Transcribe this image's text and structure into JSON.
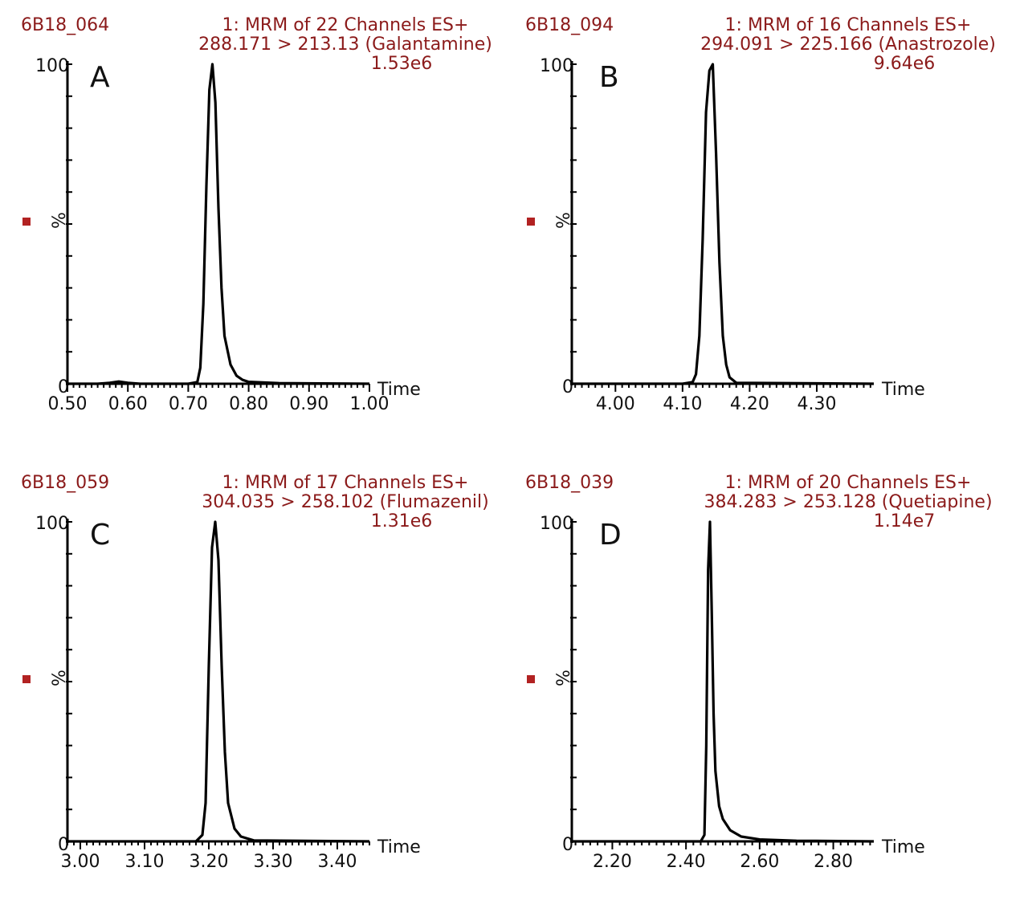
{
  "colors": {
    "header_text": "#8b1a1a",
    "marker": "#b22222",
    "trace": "#000000"
  },
  "chart_data": [
    {
      "type": "line",
      "panel_letter": "A",
      "sample_id": "6B18_064",
      "function_title": "1: MRM of 22 Channels ES+",
      "transition": "288.171 > 213.13 (Galantamine)",
      "intensity_scale": "1.53e6",
      "ylabel": "%",
      "xlabel": "Time",
      "y_tick_labels": [
        "100",
        "0"
      ],
      "ylim": [
        0,
        100
      ],
      "xlim": [
        0.5,
        1.0
      ],
      "x_ticks": [
        "0.50",
        "0.60",
        "0.70",
        "0.80",
        "0.90",
        "1.00"
      ],
      "series": [
        {
          "x": [
            0.5,
            0.55,
            0.57,
            0.585,
            0.6,
            0.62,
            0.7,
            0.715,
            0.72,
            0.725,
            0.73,
            0.735,
            0.74,
            0.745,
            0.75,
            0.755,
            0.76,
            0.77,
            0.78,
            0.79,
            0.8,
            0.85,
            1.0
          ],
          "y": [
            0,
            0,
            0.3,
            0.7,
            0.3,
            0,
            0,
            0.5,
            5,
            25,
            62,
            92,
            100,
            88,
            55,
            30,
            15,
            6,
            2.5,
            1.2,
            0.6,
            0.2,
            0
          ]
        }
      ]
    },
    {
      "type": "line",
      "panel_letter": "B",
      "sample_id": "6B18_094",
      "function_title": "1: MRM of 16 Channels ES+",
      "transition": "294.091 > 225.166 (Anastrozole)",
      "intensity_scale": "9.64e6",
      "ylabel": "%",
      "xlabel": "Time",
      "y_tick_labels": [
        "100",
        "0"
      ],
      "ylim": [
        0,
        100
      ],
      "xlim": [
        3.935,
        4.385
      ],
      "x_ticks": [
        "4.00",
        "4.10",
        "4.20",
        "4.30"
      ],
      "series": [
        {
          "x": [
            3.935,
            4.1,
            4.115,
            4.12,
            4.125,
            4.13,
            4.135,
            4.14,
            4.145,
            4.15,
            4.155,
            4.16,
            4.165,
            4.17,
            4.18,
            4.385
          ],
          "y": [
            0,
            0,
            0.5,
            3,
            15,
            45,
            85,
            98,
            100,
            72,
            38,
            15,
            6,
            2,
            0.3,
            0
          ]
        }
      ]
    },
    {
      "type": "line",
      "panel_letter": "C",
      "sample_id": "6B18_059",
      "function_title": "1: MRM of 17 Channels ES+",
      "transition": "304.035 > 258.102 (Flumazenil)",
      "intensity_scale": "1.31e6",
      "ylabel": "%",
      "xlabel": "Time",
      "y_tick_labels": [
        "100",
        "0"
      ],
      "ylim": [
        0,
        100
      ],
      "xlim": [
        2.98,
        3.45
      ],
      "x_ticks": [
        "3.00",
        "3.10",
        "3.20",
        "3.30",
        "3.40"
      ],
      "series": [
        {
          "x": [
            2.98,
            3.18,
            3.19,
            3.195,
            3.2,
            3.205,
            3.21,
            3.215,
            3.22,
            3.225,
            3.23,
            3.24,
            3.25,
            3.27,
            3.45
          ],
          "y": [
            0,
            0,
            2,
            12,
            55,
            92,
            100,
            88,
            55,
            28,
            12,
            4,
            1.5,
            0.3,
            0
          ]
        }
      ]
    },
    {
      "type": "line",
      "panel_letter": "D",
      "sample_id": "6B18_039",
      "function_title": "1: MRM of 20 Channels ES+",
      "transition": "384.283 > 253.128 (Quetiapine)",
      "intensity_scale": "1.14e7",
      "ylabel": "%",
      "xlabel": "Time",
      "y_tick_labels": [
        "100",
        "0"
      ],
      "ylim": [
        0,
        100
      ],
      "xlim": [
        2.09,
        2.91
      ],
      "x_ticks": [
        "2.20",
        "2.40",
        "2.60",
        "2.80"
      ],
      "series": [
        {
          "x": [
            2.09,
            2.44,
            2.45,
            2.455,
            2.46,
            2.465,
            2.47,
            2.475,
            2.48,
            2.49,
            2.5,
            2.52,
            2.55,
            2.6,
            2.7,
            2.91
          ],
          "y": [
            0,
            0,
            2,
            30,
            85,
            100,
            72,
            40,
            22,
            11,
            7,
            3.5,
            1.5,
            0.6,
            0.2,
            0
          ]
        }
      ]
    }
  ]
}
